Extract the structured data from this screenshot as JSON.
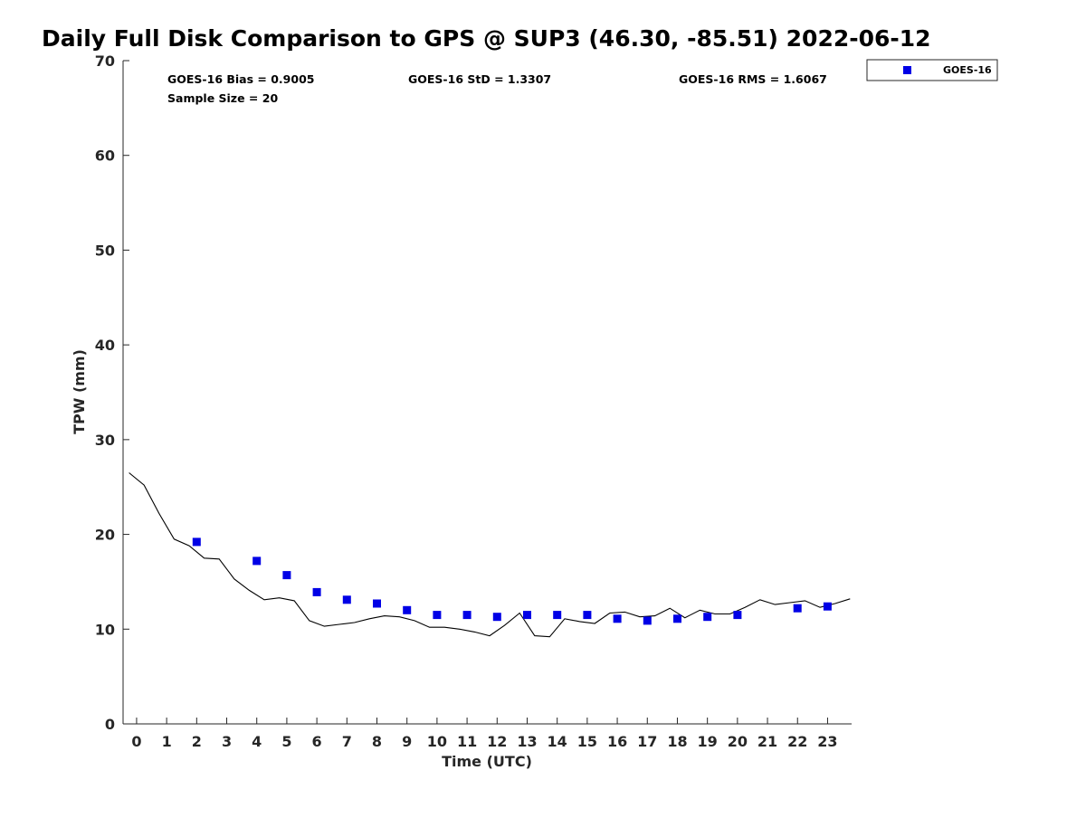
{
  "chart_data": {
    "type": "scatter",
    "title": "Daily Full Disk Comparison to GPS @ SUP3 (46.30, -85.51) 2022-06-12",
    "xlabel": "Time (UTC)",
    "ylabel": "TPW (mm)",
    "xlim": [
      -0.45,
      23.8
    ],
    "ylim": [
      0,
      70
    ],
    "x_ticks": [
      0,
      1,
      2,
      3,
      4,
      5,
      6,
      7,
      8,
      9,
      10,
      11,
      12,
      13,
      14,
      15,
      16,
      17,
      18,
      19,
      20,
      21,
      22,
      23
    ],
    "y_ticks": [
      0,
      10,
      20,
      30,
      40,
      50,
      60,
      70
    ],
    "grid": false,
    "legend_position": "outside top-right",
    "colors": {
      "goes16": "#0000e6",
      "gps": "#000000",
      "axis": "#262626"
    },
    "stats": {
      "bias": "GOES-16 Bias = 0.9005",
      "std": "GOES-16 StD = 1.3307",
      "rms": "GOES-16 RMS = 1.6067",
      "sample_size": "Sample Size = 20"
    },
    "series": [
      {
        "name": "GOES-16",
        "kind": "scatter",
        "x": [
          2,
          4,
          5,
          6,
          7,
          8,
          9,
          10,
          11,
          12,
          13,
          14,
          15,
          16,
          17,
          18,
          19,
          20,
          22,
          23
        ],
        "y": [
          19.2,
          17.2,
          15.7,
          13.9,
          13.1,
          12.7,
          12.0,
          11.5,
          11.5,
          11.3,
          11.5,
          11.5,
          11.5,
          11.1,
          10.9,
          11.1,
          11.3,
          11.5,
          12.2,
          12.4
        ]
      },
      {
        "kind": "line",
        "x": [
          -0.25,
          0.25,
          0.75,
          1.25,
          1.75,
          2.25,
          2.75,
          3.25,
          3.75,
          4.25,
          4.75,
          5.25,
          5.75,
          6.25,
          6.75,
          7.25,
          7.75,
          8.25,
          8.75,
          9.25,
          9.75,
          10.25,
          10.75,
          11.25,
          11.75,
          12.25,
          12.75,
          13.25,
          13.75,
          14.25,
          14.75,
          15.25,
          15.75,
          16.25,
          16.75,
          17.25,
          17.75,
          18.25,
          18.75,
          19.25,
          19.75,
          20.25,
          20.75,
          21.25,
          21.75,
          22.25,
          22.75,
          23.25,
          23.75
        ],
        "y": [
          26.5,
          25.2,
          22.2,
          19.5,
          18.8,
          17.5,
          17.4,
          15.3,
          14.1,
          13.1,
          13.3,
          13.0,
          10.9,
          10.3,
          10.5,
          10.7,
          11.1,
          11.4,
          11.3,
          10.9,
          10.2,
          10.2,
          10.0,
          9.7,
          9.3,
          10.4,
          11.7,
          9.3,
          9.2,
          11.1,
          10.8,
          10.6,
          11.7,
          11.8,
          11.3,
          11.4,
          12.2,
          11.2,
          12.0,
          11.6,
          11.6,
          12.3,
          13.1,
          12.6,
          12.8,
          13.0,
          12.3,
          12.7,
          13.2
        ]
      }
    ]
  }
}
